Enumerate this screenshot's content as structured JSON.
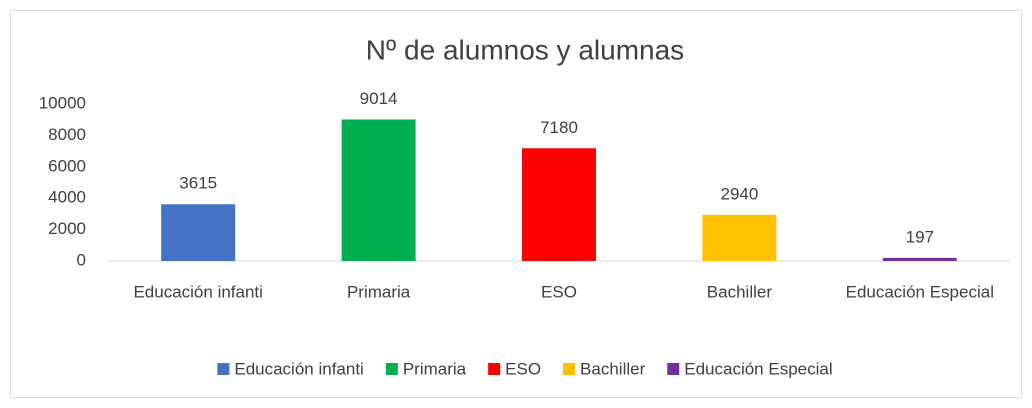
{
  "chart_data": {
    "type": "bar",
    "title": "Nº de alumnos y alumnas",
    "categories": [
      "Educación infanti",
      "Primaria",
      "ESO",
      "Bachiller",
      "Educación Especial"
    ],
    "values": [
      3615,
      9014,
      7180,
      2940,
      197
    ],
    "colors": [
      "#4472c4",
      "#00b050",
      "#ff0000",
      "#ffc000",
      "#7030a0"
    ],
    "ylim": [
      0,
      10000
    ],
    "yticks": [
      0,
      2000,
      4000,
      6000,
      8000,
      10000
    ],
    "grid": false,
    "legend": "bottom"
  }
}
